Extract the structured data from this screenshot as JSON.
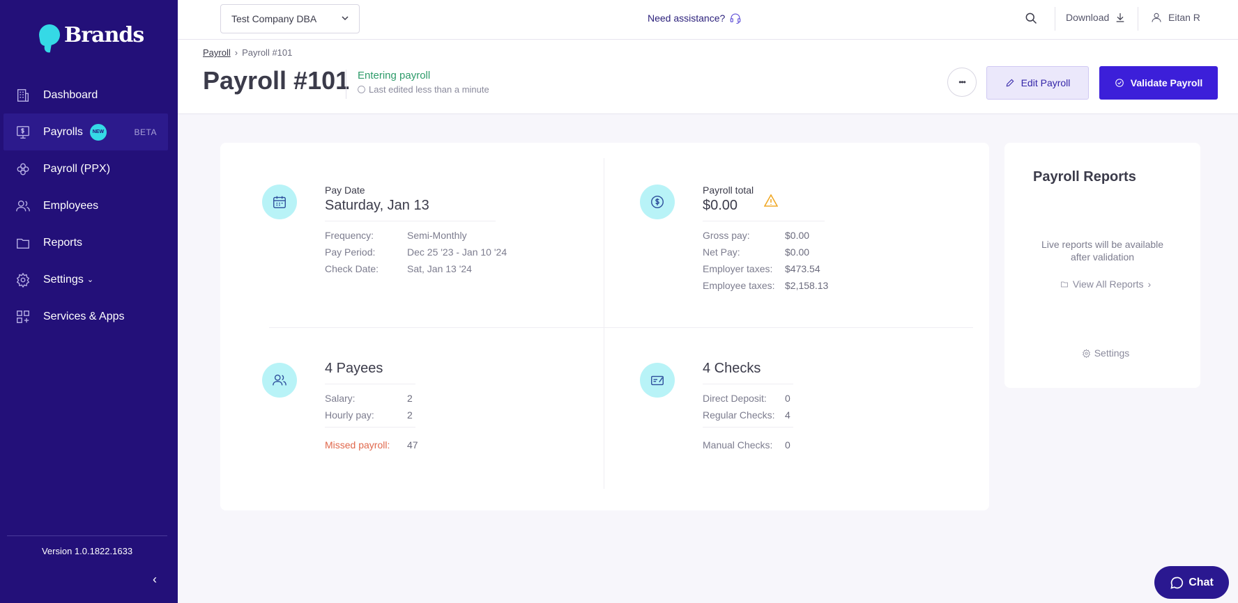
{
  "brand": {
    "name": "Brands"
  },
  "sidebar": {
    "items": [
      {
        "label": "Dashboard"
      },
      {
        "label": "Payrolls",
        "badge": "NEW",
        "tag": "BETA"
      },
      {
        "label": "Payroll (PPX)"
      },
      {
        "label": "Employees"
      },
      {
        "label": "Reports"
      },
      {
        "label": "Settings"
      },
      {
        "label": "Services & Apps"
      }
    ],
    "version": "Version 1.0.1822.1633"
  },
  "topbar": {
    "company": "Test Company DBA",
    "assistance": "Need assistance?",
    "download": "Download",
    "user": "Eitan R"
  },
  "page": {
    "breadcrumb_root": "Payroll",
    "breadcrumb_current": "Payroll #101",
    "title": "Payroll #101",
    "status": "Entering payroll",
    "last_edited": "Last edited less than a minute",
    "edit_label": "Edit Payroll",
    "validate_label": "Validate Payroll",
    "more_label": "•••"
  },
  "pay_date": {
    "label": "Pay Date",
    "value": "Saturday, Jan 13",
    "rows": [
      {
        "k": "Frequency:",
        "v": "Semi-Monthly"
      },
      {
        "k": "Pay Period:",
        "v": "Dec 25 '23 - Jan 10 '24"
      },
      {
        "k": "Check Date:",
        "v": "Sat, Jan 13 '24"
      }
    ]
  },
  "payroll_total": {
    "label": "Payroll total",
    "value": "$0.00",
    "rows": [
      {
        "k": "Gross pay:",
        "v": "$0.00"
      },
      {
        "k": "Net Pay:",
        "v": "$0.00"
      },
      {
        "k": "Employer taxes:",
        "v": "$473.54"
      },
      {
        "k": "Employee taxes:",
        "v": "$2,158.13"
      }
    ]
  },
  "payees": {
    "value": "4 Payees",
    "rows": [
      {
        "k": "Salary:",
        "v": "2"
      },
      {
        "k": "Hourly pay:",
        "v": "2"
      }
    ],
    "missed_label": "Missed payroll:",
    "missed_value": "47"
  },
  "checks": {
    "value": "4 Checks",
    "rows": [
      {
        "k": "Direct Deposit:",
        "v": "0"
      },
      {
        "k": "Regular Checks:",
        "v": "4"
      }
    ],
    "manual_label": "Manual Checks:",
    "manual_value": "0"
  },
  "reports": {
    "title": "Payroll Reports",
    "message_line1": "Live reports will be available",
    "message_line2": "after validation",
    "view_all": "View All Reports",
    "settings": "Settings"
  },
  "chat": {
    "label": "Chat"
  },
  "colors": {
    "sidebar_bg": "#231079",
    "accent": "#3c1fd9",
    "status_green": "#2e9b6a",
    "missed_red": "#e0674b",
    "icon_bg": "#b8f3f7"
  }
}
